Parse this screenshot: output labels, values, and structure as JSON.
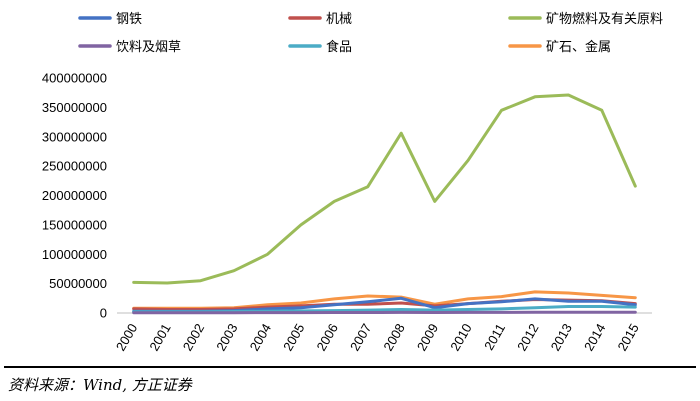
{
  "chart_data": {
    "type": "line",
    "title": "",
    "xlabel": "",
    "ylabel": "",
    "categories": [
      "2000",
      "2001",
      "2002",
      "2003",
      "2004",
      "2005",
      "2006",
      "2007",
      "2008",
      "2009",
      "2010",
      "2011",
      "2012",
      "2013",
      "2014",
      "2015"
    ],
    "ylim": [
      0,
      400000000
    ],
    "yticks": [
      0,
      50000000,
      100000000,
      150000000,
      200000000,
      250000000,
      300000000,
      350000000,
      400000000
    ],
    "ytick_labels": [
      "0",
      "50000000",
      "100000000",
      "150000000",
      "200000000",
      "250000000",
      "300000000",
      "350000000",
      "400000000"
    ],
    "grid": false,
    "legend_position": "top",
    "series": [
      {
        "name": "钢铁",
        "color": "#4472c4",
        "values": [
          3000000,
          3000000,
          3000000,
          4000000,
          7000000,
          9000000,
          14000000,
          19000000,
          25000000,
          9000000,
          16000000,
          19000000,
          24000000,
          20000000,
          20000000,
          14000000
        ]
      },
      {
        "name": "机械",
        "color": "#c0504d",
        "values": [
          7000000,
          6000000,
          6000000,
          7000000,
          10000000,
          12000000,
          15000000,
          15000000,
          17000000,
          12000000,
          16000000,
          20000000,
          23000000,
          22000000,
          21000000,
          16000000
        ]
      },
      {
        "name": "矿物燃料及有关原料",
        "color": "#9bbb59",
        "values": [
          52000000,
          51000000,
          55000000,
          72000000,
          100000000,
          150000000,
          190000000,
          215000000,
          306000000,
          190000000,
          260000000,
          345000000,
          368000000,
          371000000,
          345000000,
          216000000
        ]
      },
      {
        "name": "饮料及烟草",
        "color": "#8064a2",
        "values": [
          500000,
          500000,
          500000,
          500000,
          600000,
          700000,
          800000,
          900000,
          1000000,
          900000,
          1000000,
          1100000,
          1200000,
          1300000,
          1300000,
          1300000
        ]
      },
      {
        "name": "食品",
        "color": "#4bacc6",
        "values": [
          2000000,
          2000000,
          2000000,
          2500000,
          3000000,
          3500000,
          4000000,
          5000000,
          6000000,
          5000000,
          6000000,
          7000000,
          9000000,
          11000000,
          11000000,
          10000000
        ]
      },
      {
        "name": "矿石、金属",
        "color": "#f79646",
        "values": [
          8000000,
          8000000,
          8000000,
          9000000,
          14000000,
          17000000,
          24000000,
          29000000,
          27000000,
          15000000,
          24000000,
          28000000,
          36000000,
          34000000,
          30000000,
          26000000
        ]
      }
    ]
  },
  "source_note": "资料来源：Wind, 方正证券"
}
